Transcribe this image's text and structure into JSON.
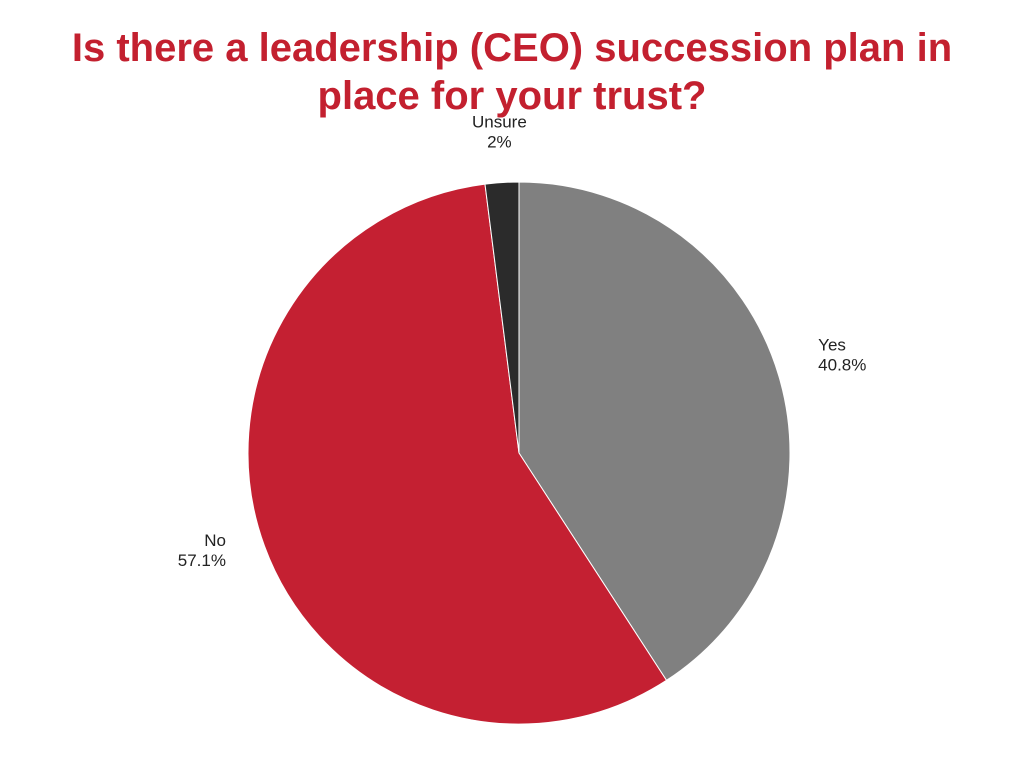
{
  "title_lines": [
    "Is there a leadership (CEO) succession plan in",
    "place for your trust?"
  ],
  "chart_data": {
    "type": "pie",
    "title": "Is there a leadership (CEO) succession plan in place for your trust?",
    "start": "12 o'clock, clockwise",
    "slices": [
      {
        "label": "Yes",
        "value": 40.8,
        "value_label": "40.8%",
        "color": "#808080"
      },
      {
        "label": "No",
        "value": 57.1,
        "value_label": "57.1%",
        "color": "#c42032"
      },
      {
        "label": "Unsure",
        "value": 2,
        "value_label": "2%",
        "color": "#2b2b2b"
      }
    ],
    "legend": "none (labels beside slices)"
  }
}
